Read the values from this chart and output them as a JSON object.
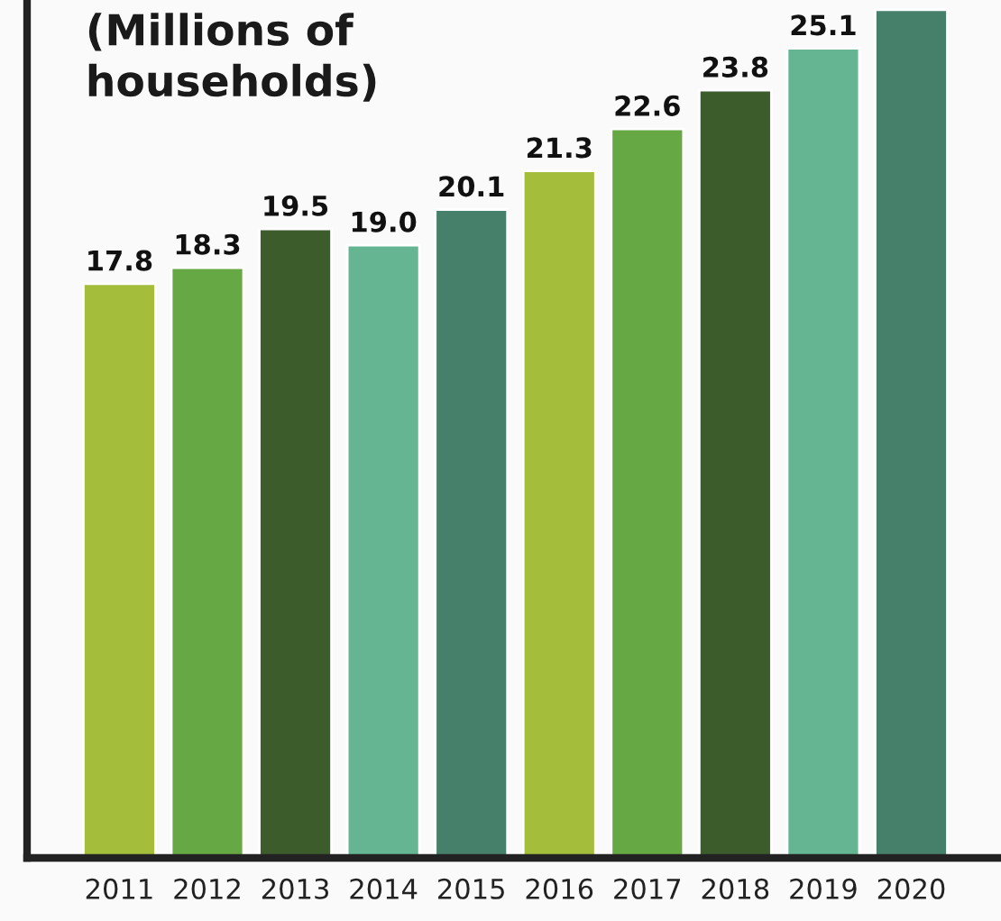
{
  "chart_data": {
    "type": "bar",
    "title": "(Millions of\nhouseholds)",
    "categories": [
      "2011",
      "2012",
      "2013",
      "2014",
      "2015",
      "2016",
      "2017",
      "2018",
      "2019",
      "2020"
    ],
    "values": [
      17.8,
      18.3,
      19.5,
      19.0,
      20.1,
      21.3,
      22.6,
      23.8,
      25.1,
      26.3
    ],
    "value_labels": [
      "17.8",
      "18.3",
      "19.5",
      "19.0",
      "20.1",
      "21.3",
      "22.6",
      "23.8",
      "25.1",
      null
    ],
    "colors": [
      "#a4bd3a",
      "#66a844",
      "#3d5c2c",
      "#66b592",
      "#47806a",
      "#a4bd3a",
      "#66a844",
      "#3d5c2c",
      "#66b592",
      "#47806a"
    ],
    "ylim": [
      0,
      26.6
    ],
    "tick_labels": "x",
    "grid": false,
    "legend": false
  }
}
